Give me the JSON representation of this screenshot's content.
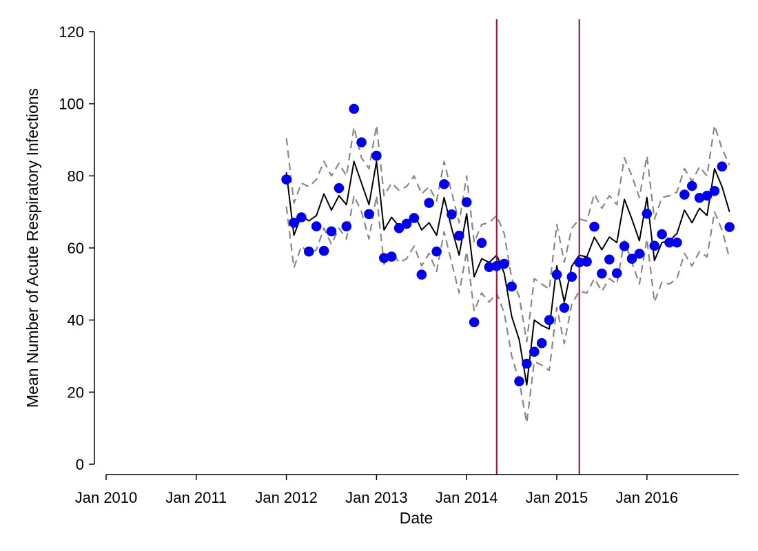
{
  "chart_data": {
    "type": "scatter",
    "xlabel": "Date",
    "ylabel": "Mean Number of Acute Respiratory Infections",
    "xlim": [
      "2009-12",
      "2016-12"
    ],
    "ylim": [
      0,
      120
    ],
    "x_ticks": [
      {
        "value": "2010-01",
        "label": "Jan 2010"
      },
      {
        "value": "2011-01",
        "label": "Jan 2011"
      },
      {
        "value": "2012-01",
        "label": "Jan 2012"
      },
      {
        "value": "2013-01",
        "label": "Jan 2013"
      },
      {
        "value": "2014-01",
        "label": "Jan 2014"
      },
      {
        "value": "2015-01",
        "label": "Jan 2015"
      },
      {
        "value": "2016-01",
        "label": "Jan 2016"
      }
    ],
    "y_ticks": [
      0,
      20,
      40,
      60,
      80,
      100,
      120
    ],
    "grid": false,
    "legend": "none",
    "colors": {
      "points": "#0000ee",
      "fit": "#000000",
      "ci": "#888888",
      "vlines": "#a0193c"
    },
    "x": [
      "2012-01",
      "2012-02",
      "2012-03",
      "2012-04",
      "2012-05",
      "2012-06",
      "2012-07",
      "2012-08",
      "2012-09",
      "2012-10",
      "2012-11",
      "2012-12",
      "2013-01",
      "2013-02",
      "2013-03",
      "2013-04",
      "2013-05",
      "2013-06",
      "2013-07",
      "2013-08",
      "2013-09",
      "2013-10",
      "2013-11",
      "2013-12",
      "2014-01",
      "2014-02",
      "2014-03",
      "2014-04",
      "2014-05",
      "2014-06",
      "2014-07",
      "2014-08",
      "2014-09",
      "2014-10",
      "2014-11",
      "2014-12",
      "2015-01",
      "2015-02",
      "2015-03",
      "2015-04",
      "2015-05",
      "2015-06",
      "2015-07",
      "2015-08",
      "2015-09",
      "2015-10",
      "2015-11",
      "2015-12",
      "2016-01",
      "2016-02",
      "2016-03",
      "2016-04",
      "2016-05",
      "2016-06",
      "2016-07",
      "2016-08",
      "2016-09",
      "2016-10",
      "2016-11",
      "2016-12"
    ],
    "series": [
      {
        "type": "scatter",
        "values": [
          79,
          67,
          68.5,
          59,
          66,
          59.2,
          64.6,
          76.6,
          66,
          98.6,
          89.3,
          69.4,
          85.6,
          57.2,
          57.6,
          65.5,
          66.7,
          68.3,
          52.6,
          72.5,
          59,
          77.7,
          69.3,
          63.4,
          72.7,
          39.4,
          61.4,
          54.7,
          55,
          55.6,
          49.3,
          23,
          27.9,
          31.2,
          33.6,
          40,
          52.6,
          43.4,
          52,
          56,
          56.2,
          65.9,
          52.9,
          56.8,
          53,
          60.5,
          57,
          58.4,
          69.5,
          60.6,
          63.8,
          61.5,
          61.5,
          74.8,
          77.2,
          73.9,
          74.5,
          75.8,
          82.6,
          65.8
        ]
      },
      {
        "type": "line",
        "style": "solid",
        "values": [
          81,
          63.5,
          69,
          67.5,
          69,
          75,
          70.5,
          74.5,
          72,
          84,
          78,
          72,
          84,
          65,
          68.5,
          66,
          67,
          69.5,
          65,
          67,
          63.5,
          74,
          65.5,
          58,
          69.5,
          52,
          57,
          56,
          58,
          53,
          41,
          34.5,
          22,
          40,
          38.5,
          37.5,
          55,
          45,
          55,
          58,
          57.5,
          63,
          59.5,
          63,
          61.5,
          73.5,
          68,
          62,
          74,
          56.5,
          61.5,
          62,
          64,
          70.5,
          67,
          71,
          69,
          82,
          77,
          70
        ]
      },
      {
        "type": "line",
        "style": "dashed",
        "values": [
          90.5,
          72.5,
          78,
          77,
          79,
          84,
          80,
          83.5,
          80,
          93.5,
          85,
          82,
          94,
          74.5,
          78,
          76,
          77,
          80,
          75,
          77,
          73,
          84,
          75.5,
          67,
          80,
          61.5,
          66.5,
          67,
          69,
          64,
          51.5,
          46.5,
          34,
          51.5,
          50,
          48.5,
          66.5,
          56,
          65.5,
          68,
          67.5,
          75,
          71,
          74.5,
          72,
          85,
          80,
          74,
          85.5,
          68,
          74,
          74.5,
          75.5,
          82,
          78.5,
          82.5,
          80,
          94,
          87.5,
          83
        ]
      },
      {
        "type": "line",
        "style": "dashed",
        "values": [
          71.5,
          54.5,
          60.5,
          58.5,
          59.5,
          65.5,
          61,
          65.5,
          62.5,
          74.5,
          70,
          62.5,
          74.5,
          55.5,
          59,
          56,
          57,
          60.5,
          55,
          58.5,
          53.5,
          64.5,
          56,
          47.5,
          59,
          42.5,
          47.5,
          45,
          47.5,
          42,
          30,
          23,
          11.5,
          28.5,
          27.5,
          26,
          43.5,
          33.5,
          44.5,
          48,
          47.5,
          51.5,
          48,
          51.5,
          50,
          62,
          56,
          50,
          62.5,
          45,
          50.5,
          50,
          51.5,
          58.5,
          55,
          59,
          57.5,
          70,
          65,
          57
        ]
      }
    ],
    "vertical_lines": [
      "2014-05",
      "2015-04"
    ]
  }
}
